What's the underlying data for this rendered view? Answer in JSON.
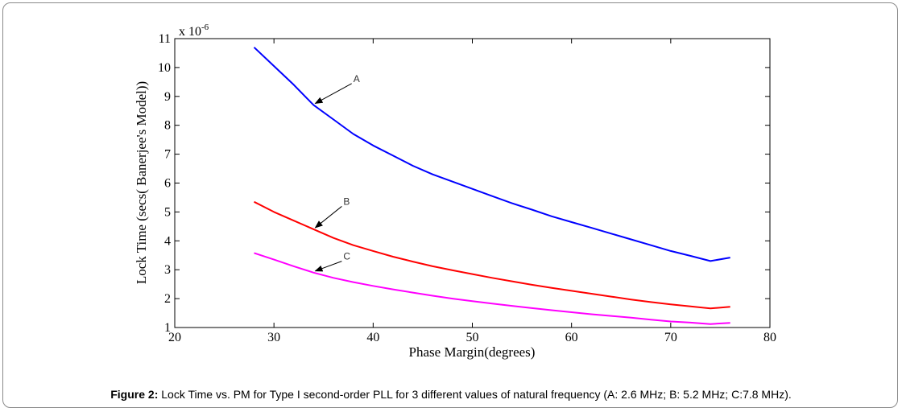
{
  "caption": {
    "label": "Figure 2:",
    "text": " Lock Time vs. PM for Type I second-order PLL for 3 different values of natural frequency (A: 2.6 MHz; B: 5.2 MHz; C:7.8 MHz)."
  },
  "chart_data": {
    "type": "line",
    "title": "",
    "xlabel": "Phase Margin(degrees)",
    "ylabel": "Lock Time (secs( Banerjee's Model))",
    "y_multiplier": "x 10",
    "y_multiplier_exp": "-6",
    "xlim": [
      20,
      80
    ],
    "ylim": [
      1,
      11
    ],
    "x_ticks": [
      20,
      30,
      40,
      50,
      60,
      70,
      80
    ],
    "y_ticks": [
      1,
      2,
      3,
      4,
      5,
      6,
      7,
      8,
      9,
      10,
      11
    ],
    "grid": false,
    "series": [
      {
        "name": "A",
        "color": "#0000ff",
        "x": [
          28,
          30,
          32,
          34,
          36,
          38,
          40,
          42,
          44,
          46,
          48,
          50,
          52,
          54,
          56,
          58,
          60,
          62,
          64,
          66,
          68,
          70,
          72,
          74,
          76
        ],
        "y": [
          10.7,
          10.05,
          9.4,
          8.7,
          8.2,
          7.7,
          7.3,
          6.95,
          6.6,
          6.3,
          6.05,
          5.8,
          5.55,
          5.3,
          5.08,
          4.85,
          4.65,
          4.45,
          4.25,
          4.05,
          3.85,
          3.65,
          3.48,
          3.3,
          3.42
        ]
      },
      {
        "name": "B",
        "color": "#ff0000",
        "x": [
          28,
          30,
          32,
          34,
          36,
          38,
          40,
          42,
          44,
          46,
          48,
          50,
          52,
          54,
          56,
          58,
          60,
          62,
          64,
          66,
          68,
          70,
          72,
          74,
          76
        ],
        "y": [
          5.35,
          5.0,
          4.7,
          4.4,
          4.1,
          3.85,
          3.65,
          3.45,
          3.28,
          3.12,
          2.98,
          2.85,
          2.72,
          2.6,
          2.48,
          2.37,
          2.27,
          2.17,
          2.07,
          1.97,
          1.88,
          1.8,
          1.73,
          1.66,
          1.72
        ]
      },
      {
        "name": "C",
        "color": "#ff00ff",
        "x": [
          28,
          30,
          32,
          34,
          36,
          38,
          40,
          42,
          44,
          46,
          48,
          50,
          52,
          54,
          56,
          58,
          60,
          62,
          64,
          66,
          68,
          70,
          72,
          74,
          76
        ],
        "y": [
          3.58,
          3.35,
          3.12,
          2.9,
          2.72,
          2.57,
          2.44,
          2.32,
          2.21,
          2.1,
          2.0,
          1.91,
          1.83,
          1.75,
          1.67,
          1.6,
          1.53,
          1.46,
          1.4,
          1.34,
          1.27,
          1.21,
          1.17,
          1.12,
          1.16
        ]
      }
    ],
    "annotations": [
      {
        "text": "A",
        "target": [
          34,
          8.7
        ],
        "text_at": [
          38,
          9.5
        ]
      },
      {
        "text": "B",
        "target": [
          34,
          4.4
        ],
        "text_at": [
          37,
          5.25
        ]
      },
      {
        "text": "C",
        "target": [
          34,
          2.9
        ],
        "text_at": [
          37,
          3.35
        ]
      }
    ]
  }
}
